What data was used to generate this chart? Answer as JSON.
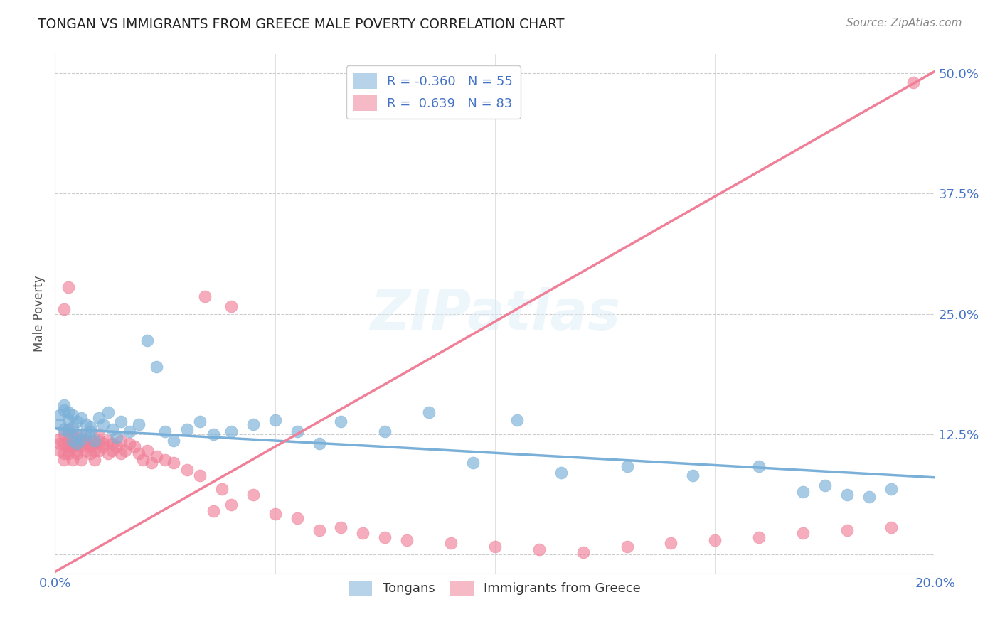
{
  "title": "TONGAN VS IMMIGRANTS FROM GREECE MALE POVERTY CORRELATION CHART",
  "source": "Source: ZipAtlas.com",
  "ylabel": "Male Poverty",
  "xlim": [
    0.0,
    0.2
  ],
  "ylim": [
    -0.02,
    0.52
  ],
  "watermark": "ZIPatlas",
  "legend_top_labels": [
    "R = -0.360   N = 55",
    "R =  0.639   N = 83"
  ],
  "legend_bottom": [
    "Tongans",
    "Immigrants from Greece"
  ],
  "tongan_color": "#7ab0d8",
  "greece_color": "#f08098",
  "yticks": [
    0.0,
    0.125,
    0.25,
    0.375,
    0.5
  ],
  "ytick_labels": [
    "",
    "12.5%",
    "25.0%",
    "37.5%",
    "50.0%"
  ],
  "xticks": [
    0.0,
    0.05,
    0.1,
    0.15,
    0.2
  ],
  "xtick_labels": [
    "0.0%",
    "",
    "",
    "",
    "20.0%"
  ],
  "tongan_line_x": [
    0.0,
    0.2
  ],
  "tongan_line_y": [
    0.131,
    0.08
  ],
  "greece_line_x": [
    0.0,
    0.2
  ],
  "greece_line_y": [
    -0.018,
    0.502
  ],
  "tongan_x": [
    0.001,
    0.001,
    0.002,
    0.002,
    0.002,
    0.003,
    0.003,
    0.003,
    0.004,
    0.004,
    0.004,
    0.005,
    0.005,
    0.005,
    0.006,
    0.006,
    0.007,
    0.007,
    0.008,
    0.008,
    0.009,
    0.01,
    0.011,
    0.012,
    0.013,
    0.014,
    0.015,
    0.017,
    0.019,
    0.021,
    0.023,
    0.025,
    0.027,
    0.03,
    0.033,
    0.036,
    0.04,
    0.045,
    0.05,
    0.055,
    0.06,
    0.065,
    0.075,
    0.085,
    0.095,
    0.105,
    0.115,
    0.13,
    0.145,
    0.16,
    0.17,
    0.175,
    0.18,
    0.185,
    0.19
  ],
  "tongan_y": [
    0.145,
    0.135,
    0.15,
    0.13,
    0.155,
    0.14,
    0.128,
    0.148,
    0.132,
    0.145,
    0.118,
    0.138,
    0.125,
    0.115,
    0.142,
    0.12,
    0.135,
    0.125,
    0.128,
    0.132,
    0.118,
    0.142,
    0.135,
    0.148,
    0.13,
    0.122,
    0.138,
    0.128,
    0.135,
    0.222,
    0.195,
    0.128,
    0.118,
    0.13,
    0.138,
    0.125,
    0.128,
    0.135,
    0.14,
    0.128,
    0.115,
    0.138,
    0.128,
    0.148,
    0.095,
    0.14,
    0.085,
    0.092,
    0.082,
    0.092,
    0.065,
    0.072,
    0.062,
    0.06,
    0.068
  ],
  "greece_x": [
    0.001,
    0.001,
    0.001,
    0.002,
    0.002,
    0.002,
    0.002,
    0.003,
    0.003,
    0.003,
    0.003,
    0.003,
    0.004,
    0.004,
    0.004,
    0.004,
    0.005,
    0.005,
    0.005,
    0.005,
    0.006,
    0.006,
    0.006,
    0.007,
    0.007,
    0.007,
    0.008,
    0.008,
    0.008,
    0.009,
    0.009,
    0.009,
    0.01,
    0.01,
    0.01,
    0.011,
    0.011,
    0.012,
    0.012,
    0.013,
    0.013,
    0.014,
    0.015,
    0.015,
    0.016,
    0.017,
    0.018,
    0.019,
    0.02,
    0.021,
    0.022,
    0.023,
    0.025,
    0.027,
    0.03,
    0.033,
    0.036,
    0.038,
    0.04,
    0.045,
    0.05,
    0.055,
    0.06,
    0.065,
    0.07,
    0.075,
    0.08,
    0.09,
    0.1,
    0.11,
    0.12,
    0.13,
    0.14,
    0.15,
    0.16,
    0.17,
    0.18,
    0.19,
    0.002,
    0.003,
    0.034,
    0.04,
    0.195
  ],
  "greece_y": [
    0.12,
    0.108,
    0.115,
    0.125,
    0.105,
    0.115,
    0.098,
    0.13,
    0.112,
    0.118,
    0.105,
    0.108,
    0.125,
    0.112,
    0.098,
    0.115,
    0.118,
    0.105,
    0.115,
    0.108,
    0.125,
    0.112,
    0.098,
    0.118,
    0.108,
    0.115,
    0.112,
    0.105,
    0.118,
    0.108,
    0.115,
    0.098,
    0.118,
    0.108,
    0.125,
    0.112,
    0.115,
    0.105,
    0.118,
    0.108,
    0.115,
    0.112,
    0.105,
    0.118,
    0.108,
    0.115,
    0.112,
    0.105,
    0.098,
    0.108,
    0.095,
    0.102,
    0.098,
    0.095,
    0.088,
    0.082,
    0.045,
    0.068,
    0.052,
    0.062,
    0.042,
    0.038,
    0.025,
    0.028,
    0.022,
    0.018,
    0.015,
    0.012,
    0.008,
    0.005,
    0.002,
    0.008,
    0.012,
    0.015,
    0.018,
    0.022,
    0.025,
    0.028,
    0.255,
    0.278,
    0.268,
    0.258,
    0.49
  ]
}
